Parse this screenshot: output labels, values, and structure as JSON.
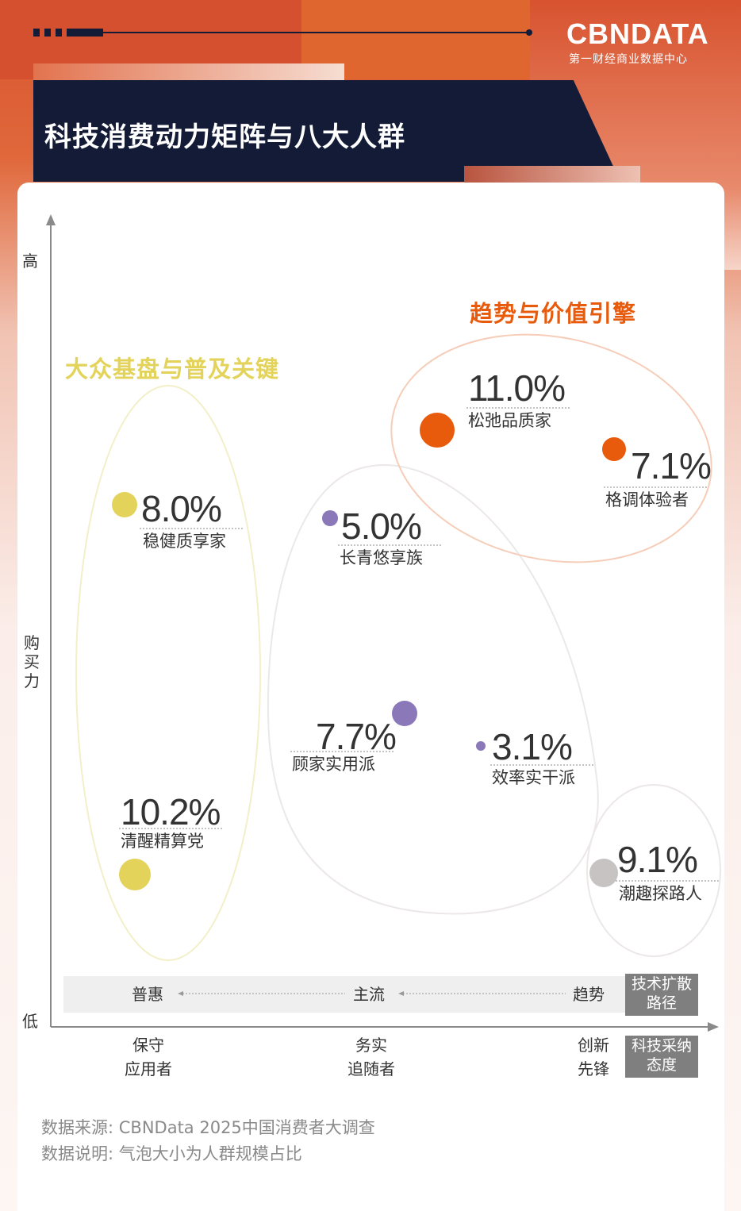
{
  "header": {
    "title": "科技消费动力矩阵与八大人群",
    "logo": "CBNDATA",
    "logo_sub": "第一财经商业数据中心"
  },
  "colors": {
    "orange": "#e85a0c",
    "yellow": "#e3d35a",
    "purple": "#8a78b8",
    "gray": "#c7c3c3",
    "navy": "#131b36"
  },
  "chart_data": {
    "type": "bubble",
    "title": "科技消费动力矩阵与八大人群",
    "ylabel": "购买力",
    "y_high": "高",
    "y_low": "低",
    "x_categories": [
      "保守应用者",
      "务实追随者",
      "创新先锋"
    ],
    "x_categories_lines": [
      [
        "保守",
        "应用者"
      ],
      [
        "务实",
        "追随者"
      ],
      [
        "创新",
        "先锋"
      ]
    ],
    "x_axis_title": [
      "科技采纳",
      "态度"
    ],
    "diffusion": {
      "labels": [
        "普惠",
        "主流",
        "趋势"
      ],
      "title": [
        "技术扩散",
        "路径"
      ]
    },
    "groups": [
      {
        "name": "趋势与价值引擎",
        "color": "#e85a0c"
      },
      {
        "name": "大众基盘与普及关键",
        "color": "#e3d35a"
      }
    ],
    "bubbles": [
      {
        "name": "松弛品质家",
        "value": "11.0%",
        "share": 11.0,
        "color": "#e85a0c"
      },
      {
        "name": "格调体验者",
        "value": "7.1%",
        "share": 7.1,
        "color": "#e85a0c"
      },
      {
        "name": "稳健质享家",
        "value": "8.0%",
        "share": 8.0,
        "color": "#e3d35a"
      },
      {
        "name": "长青悠享族",
        "value": "5.0%",
        "share": 5.0,
        "color": "#8a78b8"
      },
      {
        "name": "顾家实用派",
        "value": "7.7%",
        "share": 7.7,
        "color": "#8a78b8"
      },
      {
        "name": "效率实干派",
        "value": "3.1%",
        "share": 3.1,
        "color": "#8a78b8"
      },
      {
        "name": "清醒精算党",
        "value": "10.2%",
        "share": 10.2,
        "color": "#e3d35a"
      },
      {
        "name": "潮趣探路人",
        "value": "9.1%",
        "share": 9.1,
        "color": "#c7c3c3"
      }
    ]
  },
  "footer": {
    "source": "数据来源: CBNData 2025中国消费者大调查",
    "note": "数据说明: 气泡大小为人群规模占比"
  }
}
